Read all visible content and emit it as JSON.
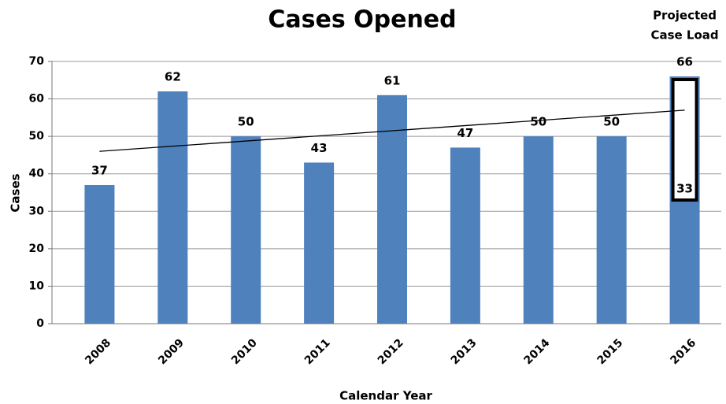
{
  "chart_data": {
    "type": "bar",
    "title": "Cases Opened",
    "x_label": "Calendar Year",
    "y_label": "Cases",
    "categories": [
      "2008",
      "2009",
      "2010",
      "2011",
      "2012",
      "2013",
      "2014",
      "2015",
      "2016"
    ],
    "values": [
      37,
      62,
      50,
      43,
      61,
      47,
      50,
      50,
      66
    ],
    "color": "#4f81bd",
    "projection": {
      "annotation": [
        "Projected",
        "Case Load"
      ],
      "values": [
        null,
        null,
        null,
        null,
        null,
        null,
        null,
        null,
        33
      ]
    },
    "trend": [
      46,
      57
    ],
    "ylim": [
      0,
      70
    ],
    "yticks": [
      0,
      10,
      20,
      30,
      40,
      50,
      60,
      70
    ],
    "grid": true
  }
}
